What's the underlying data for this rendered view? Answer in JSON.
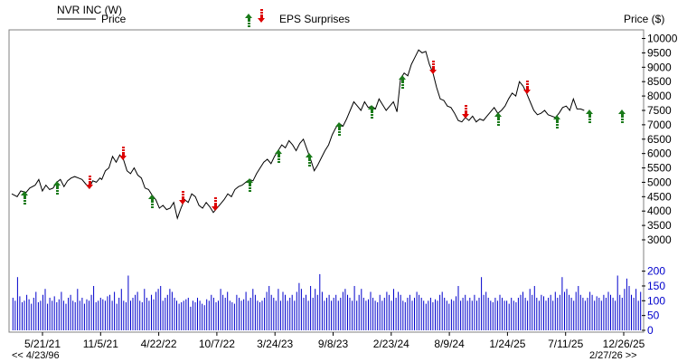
{
  "chart_data": {
    "type": "line",
    "title": "NVR INC (W)",
    "legend": {
      "price_label": "Price",
      "eps_label": "EPS Surprises",
      "axis_unit": "Price ($)"
    },
    "colors": {
      "line": "#000000",
      "up": "#1a7a1a",
      "down": "#dd0000",
      "volume": "#0000cc",
      "frame": "#808080"
    },
    "x_tick_labels": [
      "5/21/21",
      "11/5/21",
      "4/22/22",
      "10/7/22",
      "3/24/23",
      "9/8/23",
      "2/23/24",
      "8/9/24",
      "1/24/25",
      "7/11/25",
      "12/26/25"
    ],
    "nav": {
      "back": "<< 4/23/96",
      "forward": "2/27/26 >>"
    },
    "ylim": [
      3000,
      10300
    ],
    "y_ticks": [
      3000,
      3500,
      4000,
      4500,
      5000,
      5500,
      6000,
      6500,
      7000,
      7500,
      8000,
      8500,
      9000,
      9500,
      10000
    ],
    "volume_ylim": [
      0,
      205
    ],
    "volume_ticks": [
      0,
      50,
      100,
      150,
      200
    ],
    "price_series": [
      [
        0,
        4600
      ],
      [
        6,
        4500
      ],
      [
        10,
        4700
      ],
      [
        16,
        4650
      ],
      [
        20,
        4800
      ],
      [
        26,
        4900
      ],
      [
        30,
        5100
      ],
      [
        34,
        4700
      ],
      [
        38,
        4900
      ],
      [
        42,
        4750
      ],
      [
        46,
        4800
      ],
      [
        50,
        5000
      ],
      [
        54,
        5100
      ],
      [
        58,
        4850
      ],
      [
        62,
        5050
      ],
      [
        66,
        5150
      ],
      [
        70,
        5200
      ],
      [
        74,
        5150
      ],
      [
        78,
        5100
      ],
      [
        82,
        4950
      ],
      [
        86,
        4800
      ],
      [
        90,
        5050
      ],
      [
        94,
        5000
      ],
      [
        98,
        5150
      ],
      [
        100,
        5100
      ],
      [
        104,
        5400
      ],
      [
        108,
        5500
      ],
      [
        112,
        5900
      ],
      [
        116,
        5700
      ],
      [
        120,
        5950
      ],
      [
        124,
        5800
      ],
      [
        128,
        5400
      ],
      [
        132,
        5300
      ],
      [
        136,
        5500
      ],
      [
        140,
        5250
      ],
      [
        144,
        5150
      ],
      [
        148,
        4800
      ],
      [
        152,
        4750
      ],
      [
        156,
        4550
      ],
      [
        160,
        4400
      ],
      [
        164,
        4100
      ],
      [
        168,
        4200
      ],
      [
        172,
        4050
      ],
      [
        176,
        4100
      ],
      [
        180,
        4300
      ],
      [
        184,
        3750
      ],
      [
        188,
        4100
      ],
      [
        192,
        4400
      ],
      [
        196,
        4300
      ],
      [
        200,
        4600
      ],
      [
        204,
        4500
      ],
      [
        208,
        4200
      ],
      [
        212,
        4100
      ],
      [
        216,
        4300
      ],
      [
        220,
        4150
      ],
      [
        224,
        3950
      ],
      [
        228,
        4100
      ],
      [
        232,
        4250
      ],
      [
        236,
        4400
      ],
      [
        240,
        4600
      ],
      [
        244,
        4500
      ],
      [
        248,
        4750
      ],
      [
        252,
        4850
      ],
      [
        256,
        4900
      ],
      [
        260,
        5000
      ],
      [
        264,
        5100
      ],
      [
        268,
        5050
      ],
      [
        272,
        5300
      ],
      [
        276,
        5500
      ],
      [
        280,
        5700
      ],
      [
        284,
        5800
      ],
      [
        288,
        5650
      ],
      [
        292,
        5900
      ],
      [
        296,
        6100
      ],
      [
        300,
        6300
      ],
      [
        304,
        6200
      ],
      [
        308,
        6450
      ],
      [
        312,
        6300
      ],
      [
        316,
        6100
      ],
      [
        320,
        6350
      ],
      [
        324,
        6500
      ],
      [
        328,
        6150
      ],
      [
        332,
        5800
      ],
      [
        336,
        5400
      ],
      [
        340,
        5600
      ],
      [
        344,
        5850
      ],
      [
        348,
        6100
      ],
      [
        352,
        6300
      ],
      [
        356,
        6650
      ],
      [
        360,
        6900
      ],
      [
        364,
        7050
      ],
      [
        368,
        6950
      ],
      [
        372,
        7200
      ],
      [
        376,
        7500
      ],
      [
        380,
        7800
      ],
      [
        384,
        7650
      ],
      [
        388,
        7500
      ],
      [
        392,
        7800
      ],
      [
        396,
        7600
      ],
      [
        400,
        7650
      ],
      [
        404,
        7550
      ],
      [
        408,
        7900
      ],
      [
        412,
        7700
      ],
      [
        416,
        7500
      ],
      [
        420,
        7650
      ],
      [
        424,
        7800
      ],
      [
        428,
        7450
      ],
      [
        432,
        8600
      ],
      [
        436,
        8800
      ],
      [
        440,
        8700
      ],
      [
        444,
        9100
      ],
      [
        448,
        9350
      ],
      [
        452,
        9600
      ],
      [
        456,
        9500
      ],
      [
        460,
        9550
      ],
      [
        464,
        9100
      ],
      [
        468,
        8800
      ],
      [
        472,
        8300
      ],
      [
        476,
        7900
      ],
      [
        480,
        7850
      ],
      [
        484,
        7650
      ],
      [
        488,
        7600
      ],
      [
        492,
        7400
      ],
      [
        496,
        7150
      ],
      [
        500,
        7100
      ],
      [
        504,
        7250
      ],
      [
        508,
        7150
      ],
      [
        512,
        7300
      ],
      [
        516,
        7100
      ],
      [
        520,
        7200
      ],
      [
        524,
        7150
      ],
      [
        528,
        7300
      ],
      [
        532,
        7450
      ],
      [
        536,
        7600
      ],
      [
        540,
        7400
      ],
      [
        544,
        7500
      ],
      [
        548,
        7650
      ],
      [
        552,
        7900
      ],
      [
        556,
        8100
      ],
      [
        560,
        8000
      ],
      [
        564,
        8500
      ],
      [
        568,
        8350
      ],
      [
        572,
        8100
      ],
      [
        576,
        7800
      ],
      [
        580,
        7500
      ],
      [
        584,
        7350
      ],
      [
        588,
        7400
      ],
      [
        592,
        7500
      ],
      [
        596,
        7350
      ],
      [
        600,
        7300
      ],
      [
        604,
        7250
      ],
      [
        608,
        7400
      ],
      [
        612,
        7600
      ],
      [
        616,
        7650
      ],
      [
        620,
        7500
      ],
      [
        624,
        7900
      ],
      [
        628,
        7550
      ],
      [
        632,
        7550
      ],
      [
        636,
        7500
      ]
    ],
    "eps_surprises": [
      {
        "x": 14,
        "dir": "up"
      },
      {
        "x": 50,
        "dir": "up"
      },
      {
        "x": 86,
        "dir": "down"
      },
      {
        "x": 124,
        "dir": "down"
      },
      {
        "x": 156,
        "dir": "up"
      },
      {
        "x": 190,
        "dir": "down"
      },
      {
        "x": 226,
        "dir": "down"
      },
      {
        "x": 264,
        "dir": "up"
      },
      {
        "x": 296,
        "dir": "up"
      },
      {
        "x": 330,
        "dir": "up"
      },
      {
        "x": 364,
        "dir": "up"
      },
      {
        "x": 400,
        "dir": "up"
      },
      {
        "x": 434,
        "dir": "up"
      },
      {
        "x": 468,
        "dir": "down"
      },
      {
        "x": 504,
        "dir": "down"
      },
      {
        "x": 540,
        "dir": "up"
      },
      {
        "x": 572,
        "dir": "down"
      },
      {
        "x": 606,
        "dir": "up"
      },
      {
        "x": 642,
        "dir": "up"
      },
      {
        "x": 678,
        "dir": "up"
      }
    ],
    "volume": [
      110,
      100,
      180,
      115,
      95,
      100,
      120,
      105,
      90,
      110,
      130,
      95,
      100,
      120,
      140,
      90,
      110,
      100,
      115,
      95,
      105,
      130,
      100,
      90,
      110,
      120,
      100,
      95,
      140,
      100,
      110,
      90,
      105,
      100,
      120,
      150,
      95,
      100,
      110,
      105,
      100,
      115,
      120,
      100,
      130,
      90,
      110,
      140,
      100,
      95,
      185,
      100,
      110,
      120,
      130,
      100,
      95,
      140,
      110,
      100,
      120,
      105,
      130,
      140,
      150,
      100,
      110,
      120,
      140,
      130,
      110,
      100,
      90,
      95,
      100,
      105,
      110,
      80,
      100,
      95,
      110,
      100,
      90,
      85,
      105,
      100,
      120,
      110,
      95,
      100,
      140,
      120,
      110,
      130,
      100,
      95,
      90,
      120,
      110,
      100,
      105,
      130,
      100,
      110,
      140,
      120,
      100,
      95,
      100,
      110,
      130,
      150,
      120,
      110,
      100,
      140,
      100,
      130,
      120,
      100,
      110,
      120,
      100,
      130,
      160,
      140,
      110,
      120,
      100,
      150,
      110,
      140,
      120,
      190,
      130,
      100,
      110,
      120,
      100,
      110,
      120,
      100,
      110,
      130,
      140,
      120,
      110,
      100,
      150,
      100,
      120,
      140,
      110,
      100,
      105,
      130,
      110,
      100,
      95,
      120,
      100,
      110,
      130,
      120,
      100,
      140,
      110,
      130,
      120,
      100,
      95,
      110,
      120,
      100,
      110,
      130,
      120,
      110,
      100,
      90,
      100,
      110,
      95,
      105,
      100,
      120,
      130,
      110,
      100,
      90,
      105,
      100,
      115,
      150,
      100,
      110,
      120,
      100,
      110,
      100,
      120,
      100,
      110,
      180,
      120,
      130,
      110,
      100,
      95,
      110,
      100,
      120,
      110,
      100,
      100,
      90,
      110,
      100,
      95,
      110,
      120,
      130,
      110,
      100,
      140,
      120,
      150,
      110,
      100,
      120,
      115,
      100,
      110,
      120,
      100,
      130,
      110,
      120,
      180,
      130,
      140,
      120,
      110,
      100,
      130,
      150,
      120,
      110,
      100,
      110,
      130,
      120,
      100,
      115,
      110,
      100,
      120,
      110,
      130,
      120,
      110,
      100,
      185,
      120,
      110,
      140,
      175,
      150,
      120,
      110,
      140,
      100,
      130
    ]
  }
}
